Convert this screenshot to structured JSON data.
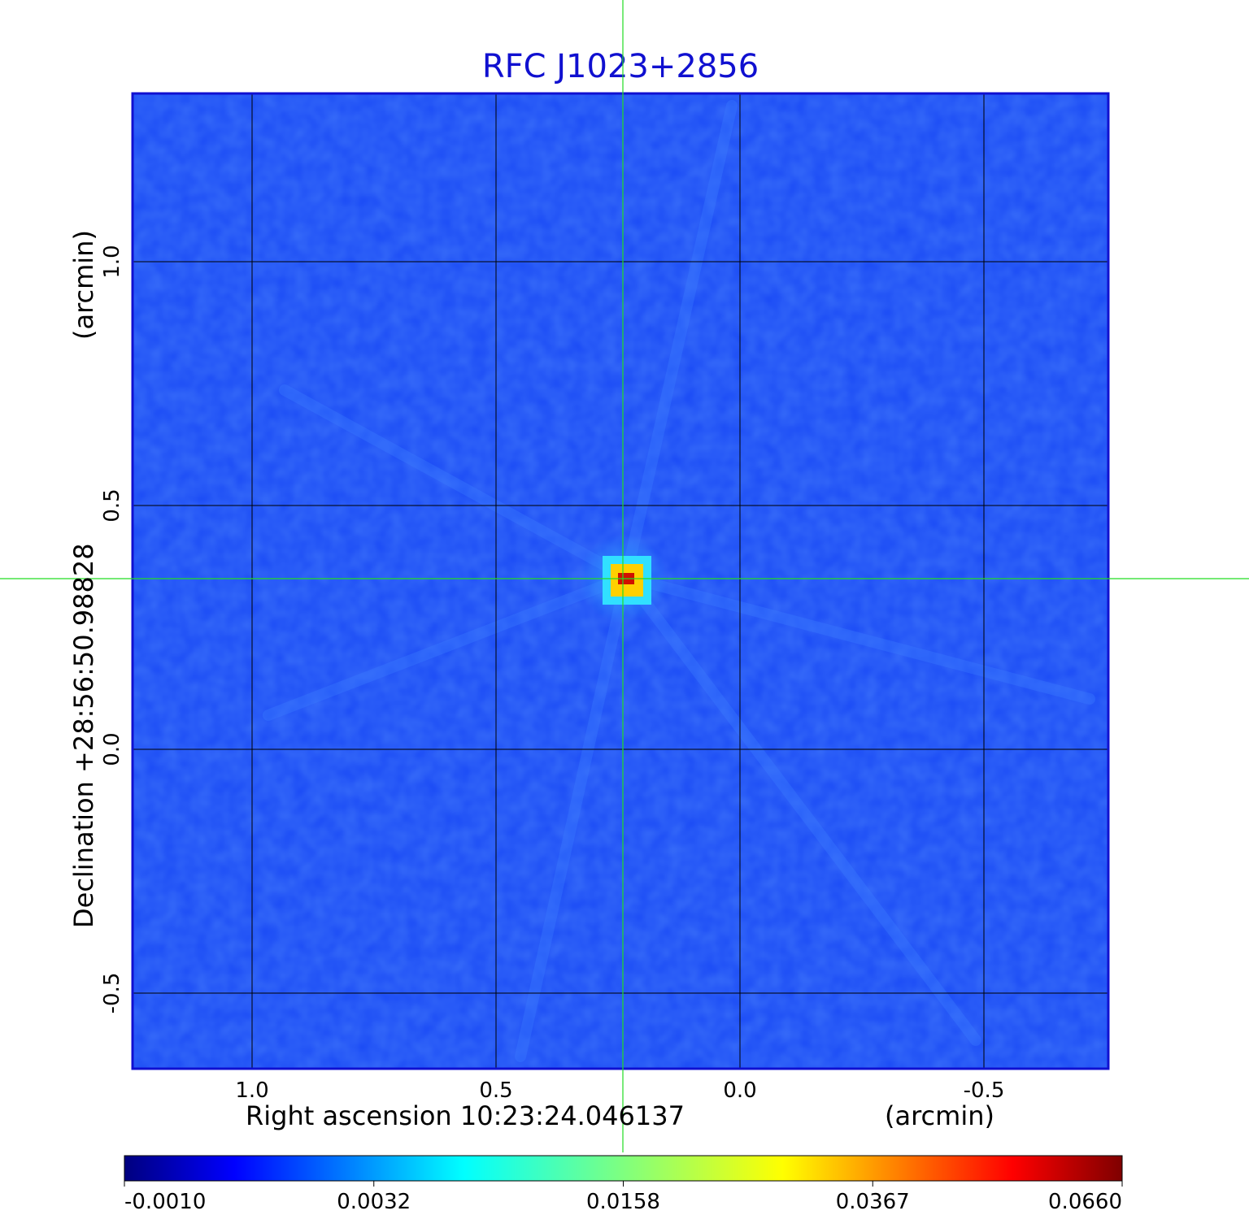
{
  "chart_data": {
    "type": "heatmap",
    "title": "RFC J1023+2856",
    "xlabel": "Right ascension  10:23:24.046137",
    "xunit": "(arcmin)",
    "ylabel": "Declination  +28:56:50.98828",
    "yunit": "(arcmin)",
    "x_ticks": [
      "1.0",
      "0.5",
      "0.0",
      "-0.5"
    ],
    "x_tick_values": [
      1.0,
      0.5,
      0.0,
      -0.5
    ],
    "y_ticks": [
      "1.0",
      "0.5",
      "0.0",
      "-0.5"
    ],
    "y_tick_values": [
      1.0,
      0.5,
      0.0,
      -0.5
    ],
    "xlim": [
      1.245,
      -0.755
    ],
    "ylim": [
      -0.655,
      1.345
    ],
    "x_reversed": true,
    "grid": true,
    "crosshair": {
      "x": 0.24,
      "y": 0.35
    },
    "source_peak": {
      "x": 0.24,
      "y": 0.35,
      "value": 0.066
    },
    "colorbar": {
      "ticks": [
        "-0.0010",
        "0.0032",
        "0.0158",
        "0.0367",
        "0.0660"
      ],
      "tick_values": [
        -0.001,
        0.0032,
        0.0158,
        0.0367,
        0.066
      ],
      "colormap": "jet",
      "placement": "bottom"
    },
    "colors": {
      "title": "#1010d0",
      "background_field": "#1a4af5",
      "crosshair": "#22dd22",
      "grid": "#000000",
      "frame": "#1010d0"
    }
  }
}
